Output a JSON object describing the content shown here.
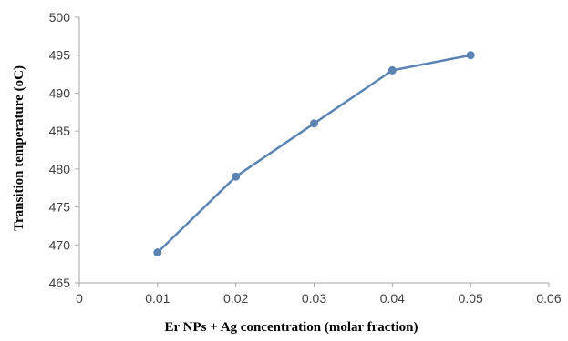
{
  "chart_data": {
    "type": "line",
    "title": "",
    "xlabel": "Er NPs + Ag concentration (molar fraction)",
    "ylabel": "Transition temperature (oC)",
    "xlim": [
      0,
      0.06
    ],
    "ylim": [
      465,
      500
    ],
    "x_ticks": [
      "0",
      "0.01",
      "0.02",
      "0.03",
      "0.04",
      "0.05",
      "0.06"
    ],
    "y_ticks": [
      "465",
      "470",
      "475",
      "480",
      "485",
      "490",
      "495",
      "500"
    ],
    "grid": false,
    "legend": "none",
    "series": [
      {
        "x": [
          0.01,
          0.02,
          0.03,
          0.04,
          0.05
        ],
        "values": [
          469,
          479,
          486,
          493,
          495
        ],
        "color": "#5b84b5"
      }
    ],
    "colors": {
      "axis": "#a6a6a6",
      "tick_text": "#404040",
      "series": "#5b84b5"
    }
  }
}
